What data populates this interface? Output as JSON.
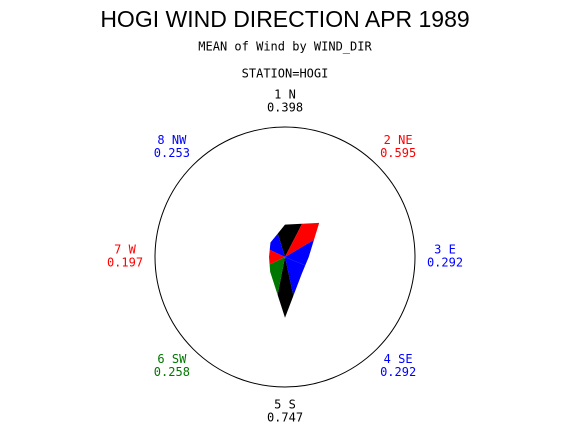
{
  "chart_data": {
    "type": "star",
    "title": "HOGI WIND DIRECTION APR 1989",
    "subtitle": "MEAN of Wind by WIND_DIR",
    "group_label": "STATION=HOGI",
    "categories": [
      "1 N",
      "2 NE",
      "3 E",
      "4 SE",
      "5 S",
      "6 SW",
      "7 W",
      "8 NW"
    ],
    "values": [
      0.398,
      0.595,
      0.292,
      0.292,
      0.747,
      0.258,
      0.197,
      0.253
    ],
    "colors": [
      "#000000",
      "#ff0000",
      "#0000ff",
      "#0000ff",
      "#000000",
      "#007700",
      "#ff0000",
      "#0000ff"
    ],
    "rlim": [
      0,
      1.6
    ]
  }
}
